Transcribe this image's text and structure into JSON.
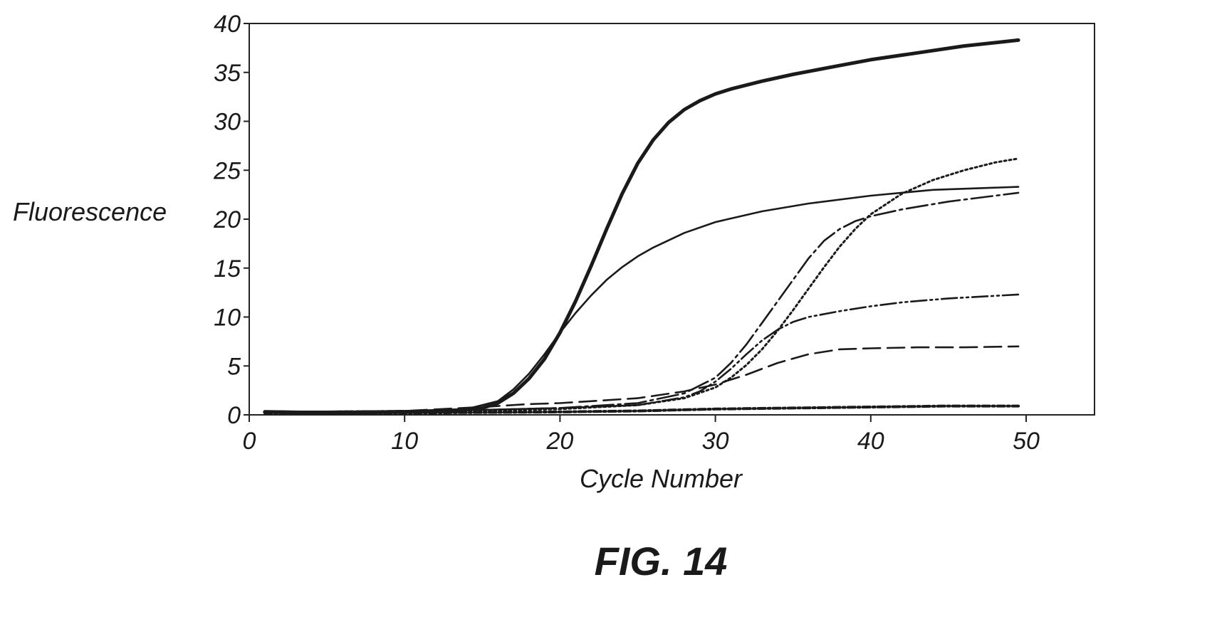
{
  "figure_label": "FIG. 14",
  "chart_data": {
    "type": "line",
    "title": "",
    "xlabel": "Cycle Number",
    "ylabel": "Fluorescence",
    "xlim": [
      0,
      55
    ],
    "ylim": [
      0,
      40
    ],
    "xticks": [
      0,
      10,
      20,
      30,
      40,
      50
    ],
    "yticks": [
      0,
      5,
      10,
      15,
      20,
      25,
      30,
      35,
      40
    ],
    "grid": false,
    "legend": "none",
    "series": [
      {
        "style": "solid-thick",
        "x": [
          1,
          5,
          10,
          13,
          15,
          16,
          17,
          18,
          19,
          20,
          21,
          22,
          23,
          24,
          25,
          26,
          27,
          28,
          29,
          30,
          31,
          33,
          35,
          38,
          40,
          43,
          46,
          49.5
        ],
        "y": [
          0.3,
          0.2,
          0.3,
          0.4,
          0.7,
          1.2,
          2.2,
          3.7,
          5.7,
          8.4,
          11.6,
          15.2,
          19.0,
          22.6,
          25.7,
          28.1,
          29.9,
          31.2,
          32.1,
          32.8,
          33.3,
          34.1,
          34.8,
          35.7,
          36.3,
          37.0,
          37.7,
          38.3
        ]
      },
      {
        "style": "solid",
        "x": [
          1,
          5,
          10,
          14,
          16,
          17,
          18,
          19,
          20,
          21,
          22,
          23,
          24,
          25,
          26,
          28,
          30,
          33,
          36,
          40,
          44,
          49.5
        ],
        "y": [
          0.4,
          0.3,
          0.4,
          0.6,
          1.4,
          2.6,
          4.2,
          6.2,
          8.4,
          10.4,
          12.2,
          13.8,
          15.1,
          16.2,
          17.1,
          18.6,
          19.7,
          20.8,
          21.6,
          22.4,
          23.0,
          23.3
        ]
      },
      {
        "style": "long-dash-dot",
        "x": [
          1,
          10,
          15,
          20,
          25,
          28,
          30,
          31,
          32,
          33,
          34,
          35,
          36,
          37,
          38,
          39,
          40,
          42,
          45,
          49.5
        ],
        "y": [
          0.3,
          0.4,
          0.5,
          0.7,
          1.2,
          2.2,
          3.8,
          5.3,
          7.2,
          9.4,
          11.6,
          13.8,
          16.0,
          17.8,
          19.0,
          19.8,
          20.3,
          21.0,
          21.8,
          22.7
        ]
      },
      {
        "style": "dotted",
        "x": [
          1,
          10,
          15,
          20,
          25,
          28,
          30,
          31,
          32,
          33,
          34,
          35,
          36,
          37,
          38,
          39,
          40,
          42,
          44,
          46,
          48,
          49.5
        ],
        "y": [
          0.2,
          0.3,
          0.4,
          0.6,
          1.0,
          1.7,
          2.8,
          3.8,
          5.1,
          6.7,
          8.6,
          10.7,
          12.9,
          15.1,
          17.2,
          19.0,
          20.5,
          22.6,
          24.0,
          25.0,
          25.8,
          26.2
        ]
      },
      {
        "style": "dash-dot-dot",
        "x": [
          1,
          10,
          15,
          20,
          25,
          28,
          29,
          30,
          31,
          32,
          33,
          34,
          35,
          36,
          38,
          40,
          42,
          45,
          49.5
        ],
        "y": [
          0.3,
          0.4,
          0.5,
          0.7,
          1.0,
          1.8,
          2.4,
          3.4,
          4.7,
          6.2,
          7.6,
          8.7,
          9.5,
          10.0,
          10.6,
          11.1,
          11.5,
          11.9,
          12.3
        ]
      },
      {
        "style": "dashed",
        "x": [
          1,
          10,
          15,
          18,
          20,
          25,
          28,
          30,
          32,
          34,
          36,
          38,
          40,
          43,
          46,
          49.5
        ],
        "y": [
          0.3,
          0.4,
          0.8,
          1.1,
          1.2,
          1.7,
          2.4,
          3.1,
          4.1,
          5.3,
          6.2,
          6.7,
          6.8,
          6.9,
          6.9,
          7.0
        ]
      },
      {
        "style": "hatched-baseline",
        "x": [
          1,
          10,
          20,
          25,
          30,
          35,
          40,
          45,
          49.5
        ],
        "y": [
          0.2,
          0.2,
          0.3,
          0.4,
          0.6,
          0.7,
          0.8,
          0.9,
          0.9
        ]
      }
    ]
  }
}
